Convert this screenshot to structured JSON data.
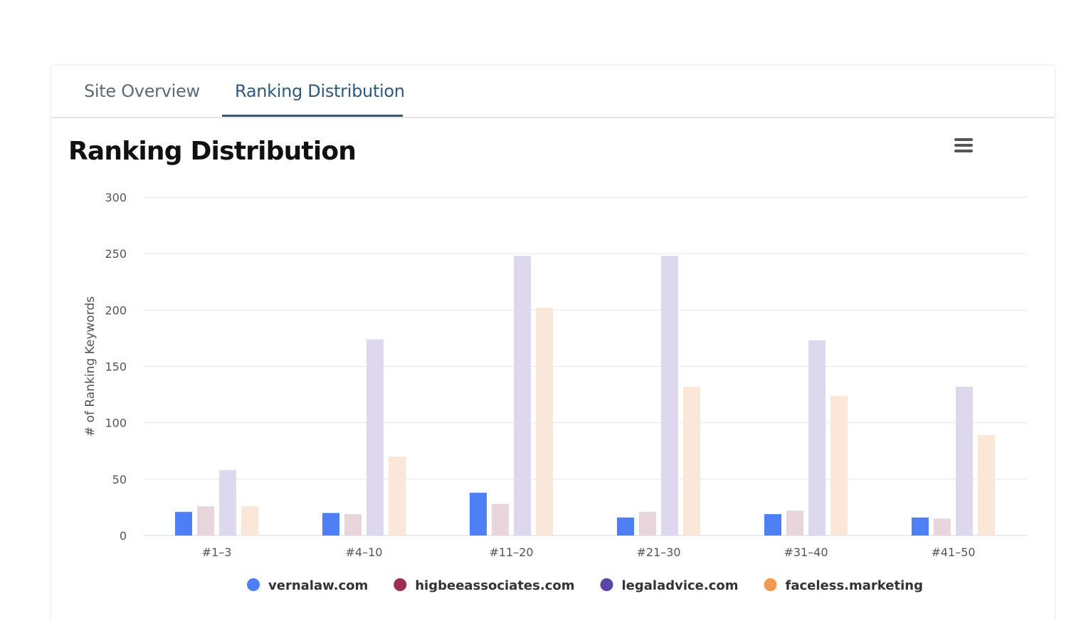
{
  "tabs": [
    {
      "label": "Site Overview",
      "active": false
    },
    {
      "label": "Ranking Distribution",
      "active": true
    }
  ],
  "section_title": "Ranking Distribution",
  "menu_icon": "hamburger-menu-icon",
  "chart_data": {
    "type": "bar",
    "ylabel": "# of Ranking Keywords",
    "xlabel": "",
    "ylim": [
      0,
      300
    ],
    "yticks": [
      "0",
      "50",
      "100",
      "150",
      "200",
      "250",
      "300"
    ],
    "categories": [
      "#1–3",
      "#4–10",
      "#11–20",
      "#21–30",
      "#31–40",
      "#41–50"
    ],
    "series": [
      {
        "name": "vernalaw.com",
        "color": "#4e7ff5",
        "bar_color": "#4e7ff5",
        "values": [
          21,
          20,
          38,
          16,
          19,
          16
        ]
      },
      {
        "name": "higbeeassociates.com",
        "color": "#9c2f4d",
        "bar_color": "#e8d6dc",
        "values": [
          26,
          19,
          28,
          21,
          22,
          15
        ]
      },
      {
        "name": "legaladvice.com",
        "color": "#5c45a8",
        "bar_color": "#ddd8ee",
        "values": [
          58,
          174,
          248,
          248,
          173,
          132
        ]
      },
      {
        "name": "faceless.marketing",
        "color": "#f29a50",
        "bar_color": "#fbe7d8",
        "values": [
          26,
          70,
          202,
          132,
          124,
          89
        ]
      }
    ],
    "legend_position": "bottom-center",
    "grid": true
  }
}
